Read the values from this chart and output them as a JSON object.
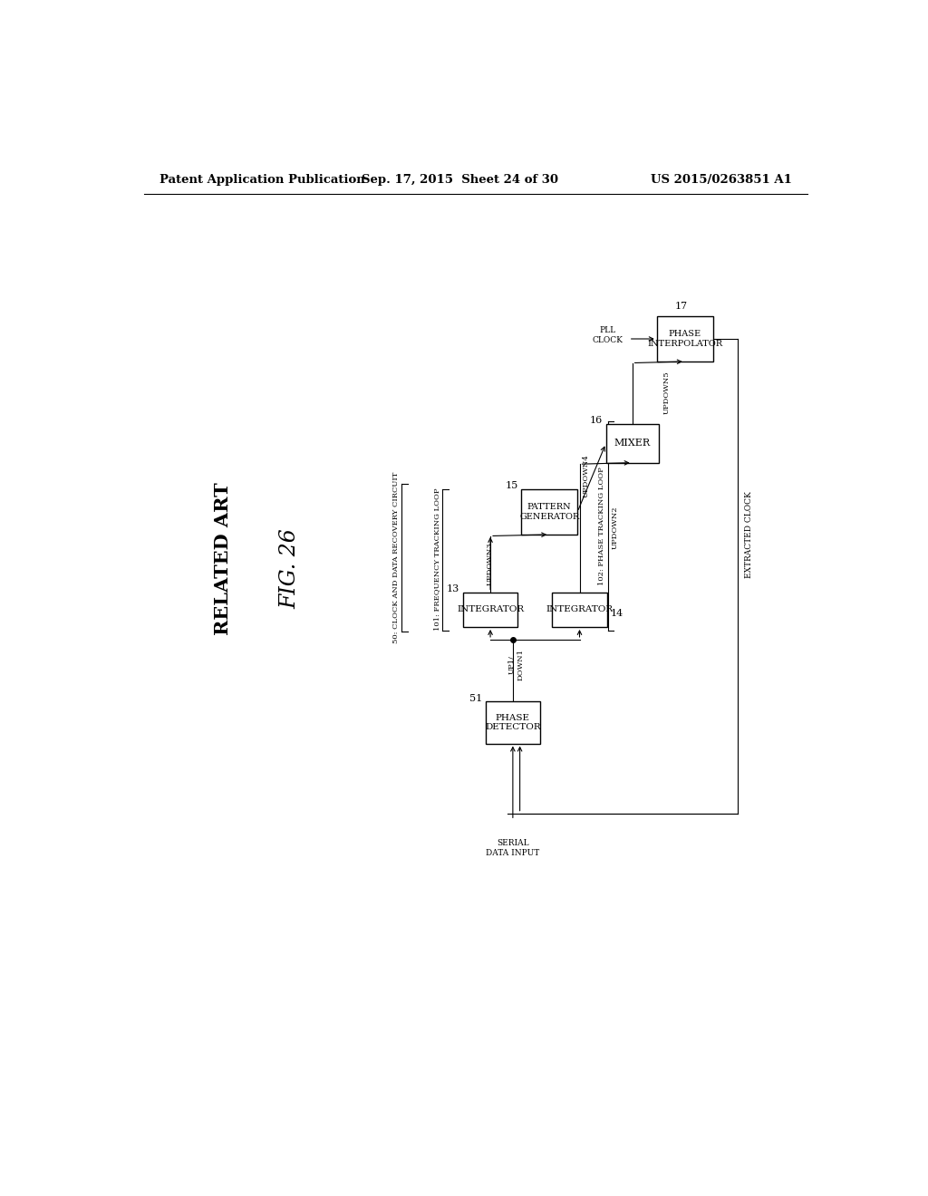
{
  "background_color": "#ffffff",
  "header_left": "Patent Application Publication",
  "header_mid": "Sep. 17, 2015  Sheet 24 of 30",
  "header_right": "US 2015/0263851 A1",
  "related_art": "RELATED ART",
  "fig_label": "FIG. 26",
  "circuit_label": "50: CLOCK AND DATA RECOVERY CIRCUIT",
  "freq_loop_label": "101: FREQUENCY TRACKING LOOP",
  "phase_loop_label": "102: PHASE TRACKING LOOP",
  "extracted_clock": "EXTRACTED CLOCK",
  "pll_clock": "PLL\nCLOCK",
  "serial_input": "SERIAL\nDATA INPUT"
}
